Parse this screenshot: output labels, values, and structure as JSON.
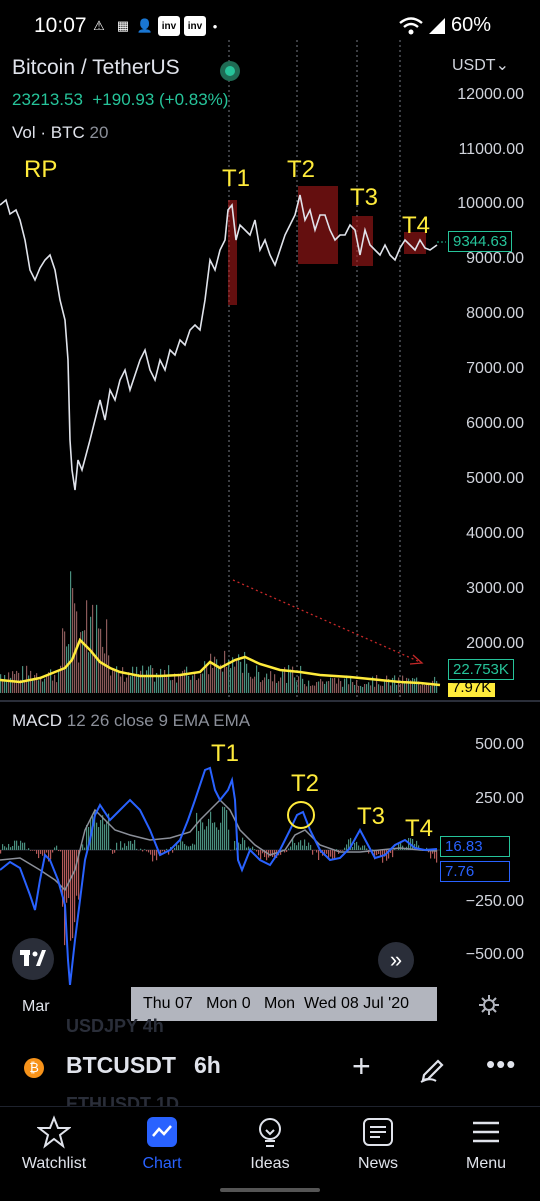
{
  "status_bar": {
    "time": "10:07",
    "battery": "60%",
    "icons": [
      "alert-icon",
      "app-icon",
      "person-add-icon",
      "investing-icon",
      "investing-icon",
      "dot-icon",
      "wifi-icon",
      "signal-icon",
      "battery-icon"
    ]
  },
  "header": {
    "symbol_title": "Bitcoin / TetherUS",
    "last_price": "23213.53",
    "change": "+190.93 (+0.83%)",
    "volume_label": "Vol · BTC",
    "volume_length": "20",
    "currency": "USDT"
  },
  "price_axis": [
    "12000.00",
    "11000.00",
    "10000.00",
    "9000.00",
    "8000.00",
    "7000.00",
    "6000.00",
    "5000.00",
    "4000.00",
    "3000.00",
    "2000.00"
  ],
  "price_badge": "9344.63",
  "volume_badge": "22.753K",
  "volume_badge2": "7.97K",
  "annotations": {
    "rp": "RP",
    "t1": "T1",
    "t2": "T2",
    "t3": "T3",
    "t4": "T4"
  },
  "macd": {
    "label": "MACD",
    "params": "12 26 close 9 EMA EMA",
    "axis": [
      "500.00",
      "250.00",
      "−250.00",
      "−500.00"
    ],
    "badge_macd": "16.83",
    "badge_signal": "7.76",
    "annotations": {
      "t1": "T1",
      "t2": "T2",
      "t3": "T3",
      "t4": "T4"
    }
  },
  "time_axis": {
    "left": "Mar",
    "labels": "Thu 07   Mon 0   Mon  Wed 08 Jul '20"
  },
  "symbol_row": {
    "symbol": "BTCUSDT",
    "interval": "6h",
    "ghost_above": "USDJPY  4h",
    "ghost_below": "ETHUSDT  1D"
  },
  "nav": [
    {
      "label": "Watchlist",
      "icon": "star-icon"
    },
    {
      "label": "Chart",
      "icon": "chart-icon"
    },
    {
      "label": "Ideas",
      "icon": "lightbulb-icon"
    },
    {
      "label": "News",
      "icon": "news-icon"
    },
    {
      "label": "Menu",
      "icon": "menu-icon"
    }
  ],
  "colors": {
    "accent": "#2962ff",
    "green": "#26c49a",
    "yellow": "#ffeb3b",
    "macd": "#2962ff",
    "signal": "#8b8f99"
  }
}
